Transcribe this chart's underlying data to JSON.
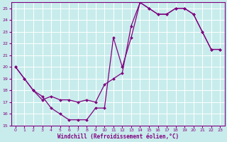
{
  "xlabel": "Windchill (Refroidissement éolien,°C)",
  "background_color": "#c8ecec",
  "grid_color": "#ffffff",
  "line_color": "#800080",
  "xlim": [
    -0.5,
    23.5
  ],
  "ylim": [
    15,
    25.5
  ],
  "xticks": [
    0,
    1,
    2,
    3,
    4,
    5,
    6,
    7,
    8,
    9,
    10,
    11,
    12,
    13,
    14,
    15,
    16,
    17,
    18,
    19,
    20,
    21,
    22,
    23
  ],
  "yticks": [
    15,
    16,
    17,
    18,
    19,
    20,
    21,
    22,
    23,
    24,
    25
  ],
  "line1_x": [
    0,
    1,
    2,
    3,
    4,
    5,
    6,
    7,
    8,
    9,
    10,
    11,
    12,
    13,
    14,
    15,
    16,
    17,
    18,
    19,
    20,
    21,
    22,
    23
  ],
  "line1_y": [
    20.0,
    19.0,
    18.0,
    17.5,
    16.5,
    16.0,
    15.5,
    15.5,
    15.5,
    16.5,
    16.5,
    22.5,
    20.0,
    22.5,
    25.5,
    25.0,
    24.5,
    24.5,
    25.0,
    25.0,
    24.5,
    23.0,
    21.5,
    21.5
  ],
  "line2_x": [
    0,
    1,
    2,
    3,
    4,
    5,
    6,
    7,
    8,
    9,
    10,
    11,
    12,
    13,
    14,
    15,
    16,
    17,
    18,
    19,
    20,
    21,
    22,
    23
  ],
  "line2_y": [
    20.0,
    19.0,
    18.0,
    17.2,
    17.5,
    17.2,
    17.2,
    17.0,
    17.2,
    17.0,
    18.5,
    19.0,
    19.5,
    23.5,
    25.5,
    25.0,
    24.5,
    24.5,
    25.0,
    25.0,
    24.5,
    23.0,
    21.5,
    21.5
  ]
}
